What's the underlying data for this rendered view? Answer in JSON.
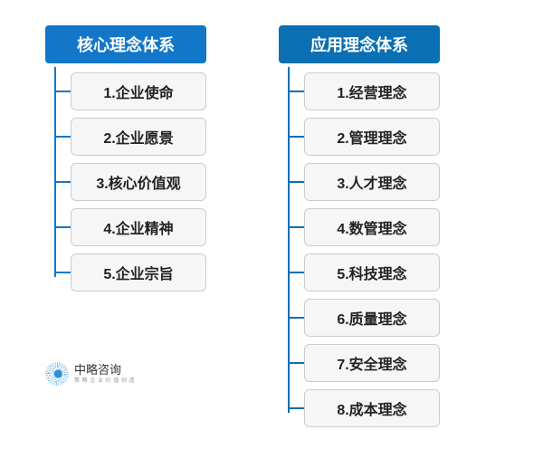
{
  "background_color": "#ffffff",
  "columns": [
    {
      "id": "core",
      "header": "核心理念体系",
      "header_bg": "#1277c9",
      "connector_color": "#1277c9",
      "item_bg": "#f6f6f6",
      "item_border": "#cccccc",
      "item_text_color": "#222222",
      "item_fontsize": 16,
      "header_fontsize": 18,
      "items": [
        "1.企业使命",
        "2.企业愿景",
        "3.核心价值观",
        "4.企业精神",
        "5.企业宗旨"
      ]
    },
    {
      "id": "applied",
      "header": "应用理念体系",
      "header_bg": "#0b6fb3",
      "connector_color": "#0b6fb3",
      "item_bg": "#f6f6f6",
      "item_border": "#cccccc",
      "item_text_color": "#222222",
      "item_fontsize": 16,
      "header_fontsize": 18,
      "items": [
        "1.经营理念",
        "2.管理理念",
        "3.人才理念",
        "4.数管理念",
        "5.科技理念",
        "6.质量理念",
        "7.安全理念",
        "8.成本理念"
      ]
    }
  ],
  "logo": {
    "text": "中略咨询",
    "subtext": "策 略 企 业 价 值 创 造",
    "icon_color": "#0a7bd1",
    "text_color": "#333333"
  }
}
